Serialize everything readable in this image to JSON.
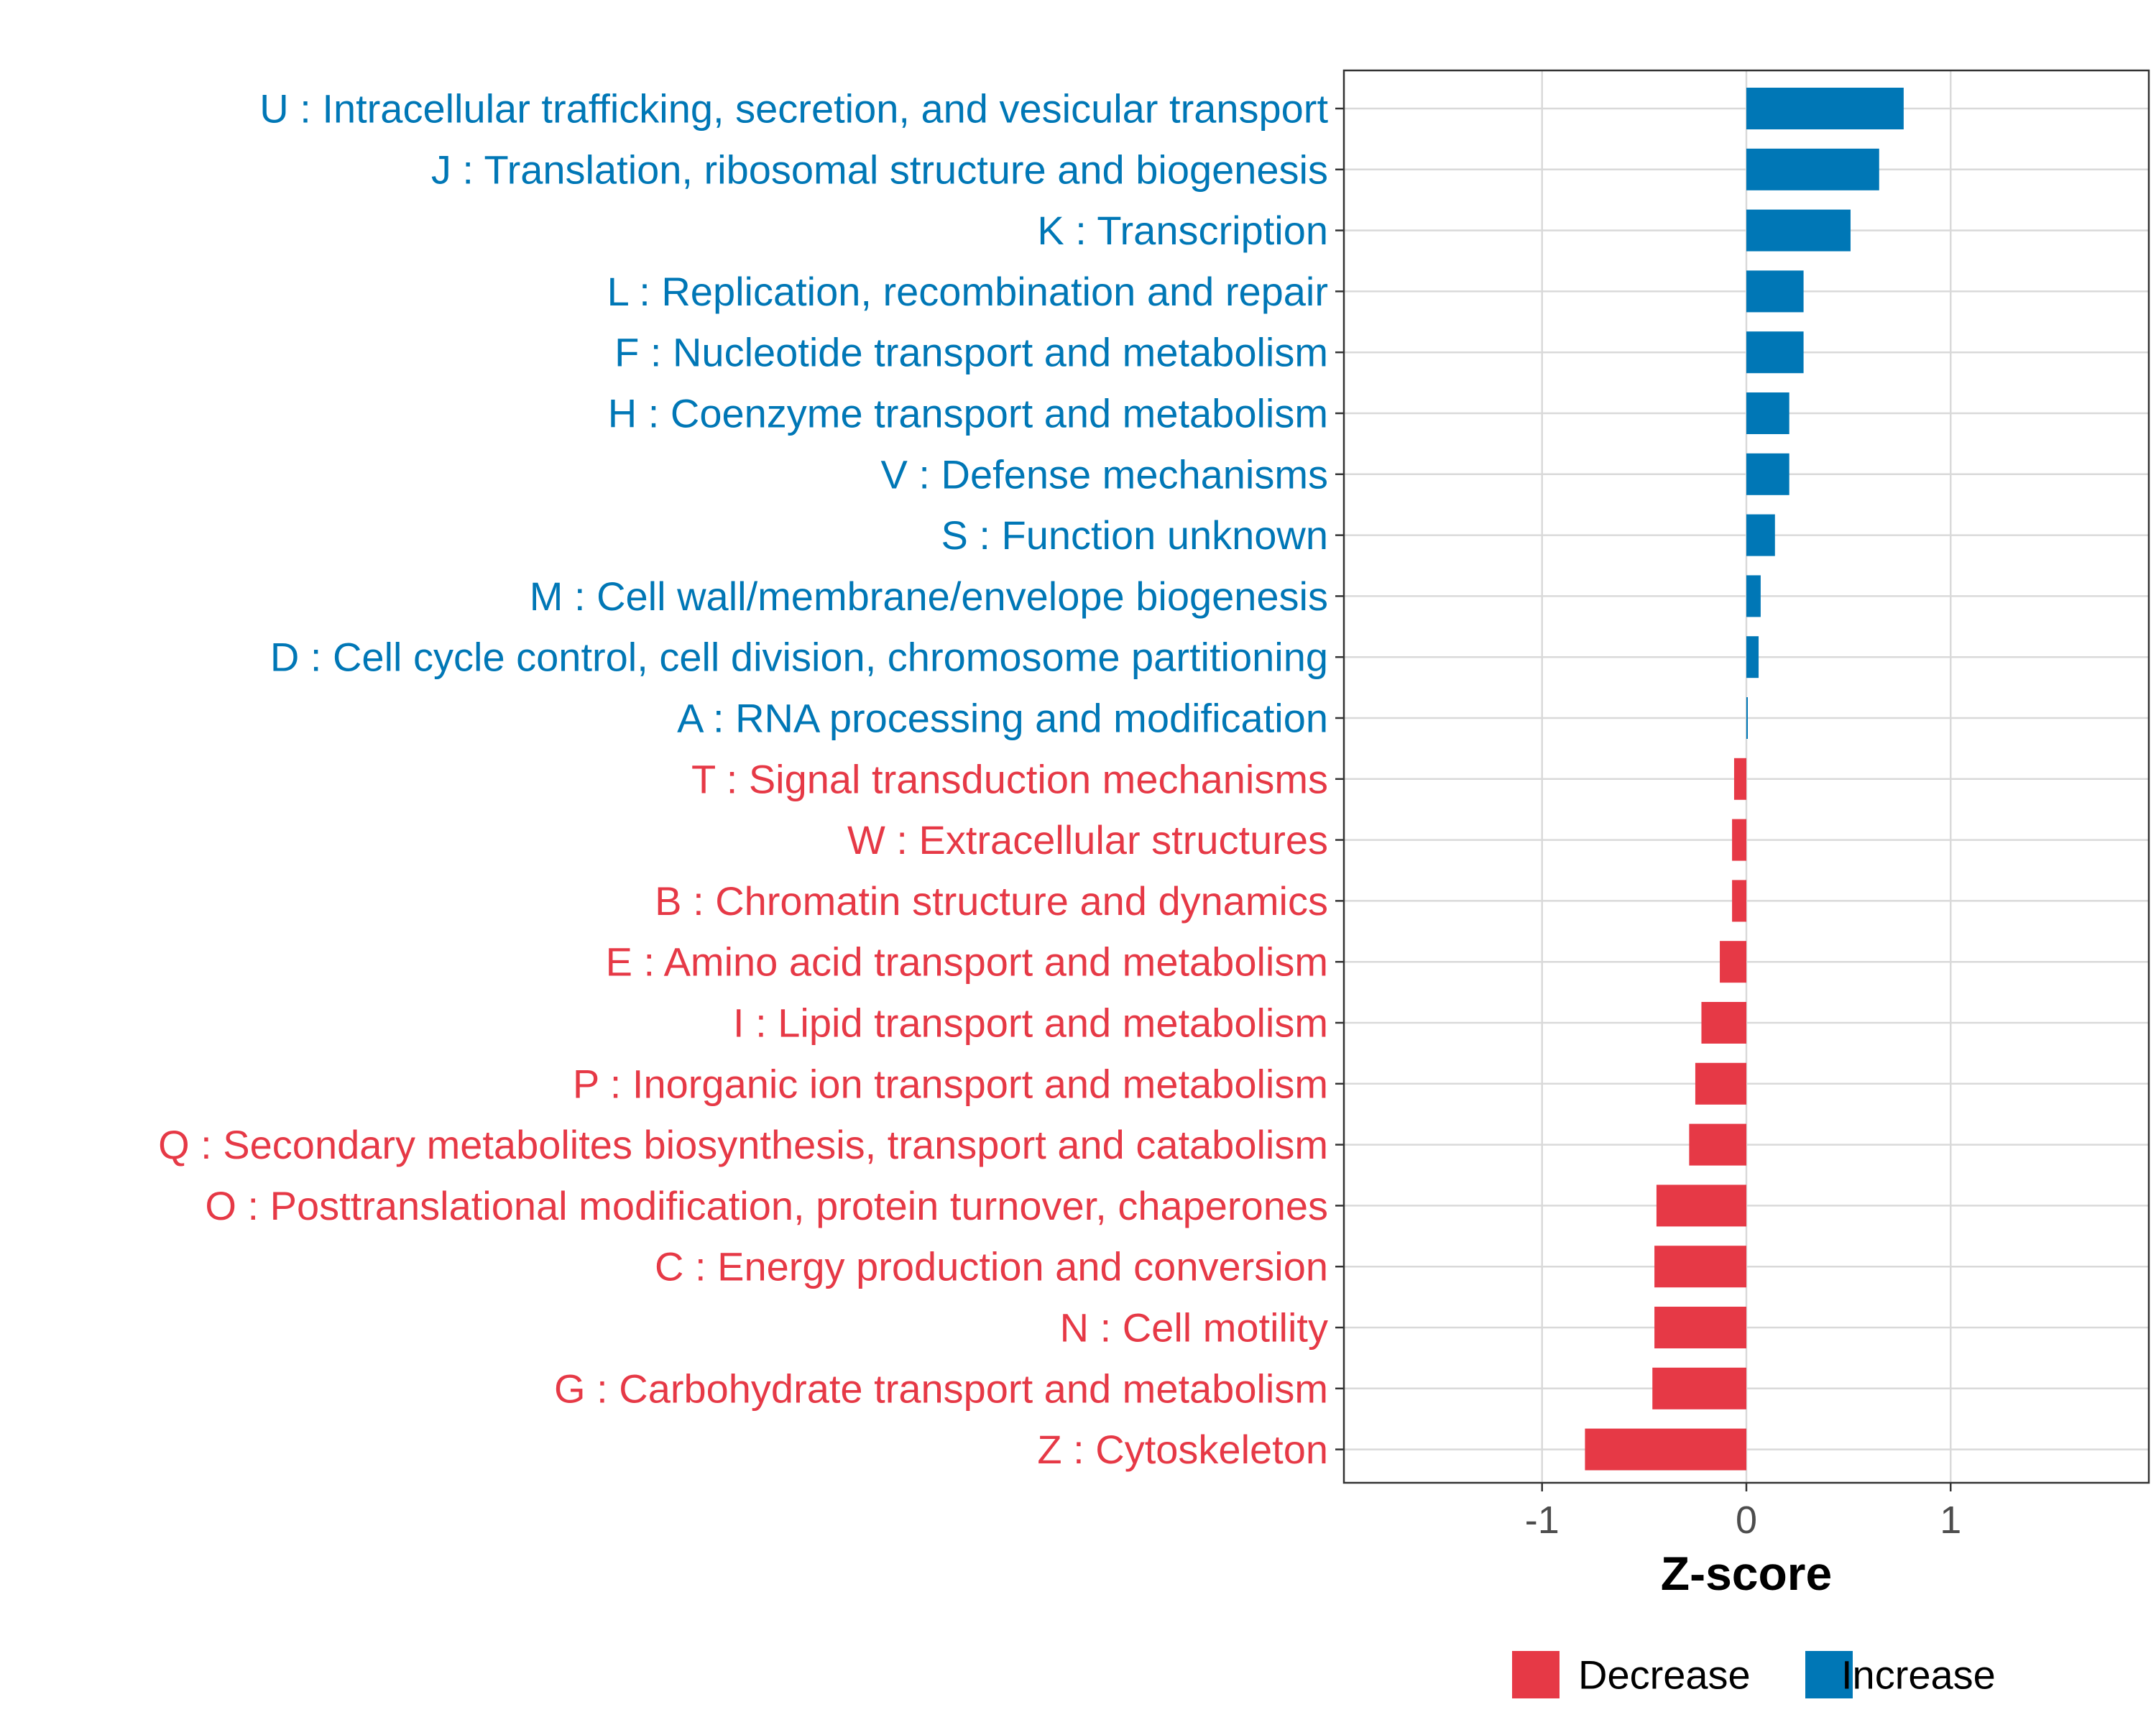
{
  "colors": {
    "decrease": "#E63946",
    "increase": "#0077B6",
    "grid": "#D9D9D9",
    "axis": "#333333"
  },
  "chart_data": {
    "type": "bar",
    "orientation": "horizontal",
    "title": "",
    "xlabel": "Z-score",
    "ylabel": "",
    "xlim": [
      -1.97,
      1.97
    ],
    "xticks": [
      -1,
      0,
      1
    ],
    "xtick_labels": [
      "-1",
      "0",
      "1"
    ],
    "grid": true,
    "legend_position": "bottom",
    "legend": [
      {
        "name": "Decrease",
        "color_key": "decrease"
      },
      {
        "name": "Increase",
        "color_key": "increase"
      }
    ],
    "categories": [
      "U : Intracellular trafficking, secretion, and vesicular transport",
      "J : Translation, ribosomal structure and biogenesis",
      "K : Transcription",
      "L : Replication, recombination and repair",
      "F : Nucleotide transport and metabolism",
      "H : Coenzyme transport and metabolism",
      "V : Defense mechanisms",
      "S : Function unknown",
      "M : Cell wall/membrane/envelope biogenesis",
      "D : Cell cycle control, cell division, chromosome partitioning",
      "A : RNA processing and modification",
      "T : Signal transduction mechanisms",
      "W : Extracellular structures",
      "B : Chromatin structure and dynamics",
      "E : Amino acid transport and metabolism",
      "I : Lipid transport and metabolism",
      "P : Inorganic ion transport and metabolism",
      "Q : Secondary metabolites biosynthesis, transport and catabolism",
      "O : Posttranslational modification, protein turnover, chaperones",
      "C : Energy production and conversion",
      "N : Cell motility",
      "G : Carbohydrate transport and metabolism",
      "Z : Cytoskeleton"
    ],
    "values": [
      0.77,
      0.65,
      0.51,
      0.28,
      0.28,
      0.21,
      0.21,
      0.14,
      0.07,
      0.06,
      0.005,
      -0.06,
      -0.07,
      -0.07,
      -0.13,
      -0.22,
      -0.25,
      -0.28,
      -0.44,
      -0.45,
      -0.45,
      -0.46,
      -0.79
    ],
    "groups": [
      "Increase",
      "Increase",
      "Increase",
      "Increase",
      "Increase",
      "Increase",
      "Increase",
      "Increase",
      "Increase",
      "Increase",
      "Increase",
      "Decrease",
      "Decrease",
      "Decrease",
      "Decrease",
      "Decrease",
      "Decrease",
      "Decrease",
      "Decrease",
      "Decrease",
      "Decrease",
      "Decrease",
      "Decrease"
    ]
  }
}
